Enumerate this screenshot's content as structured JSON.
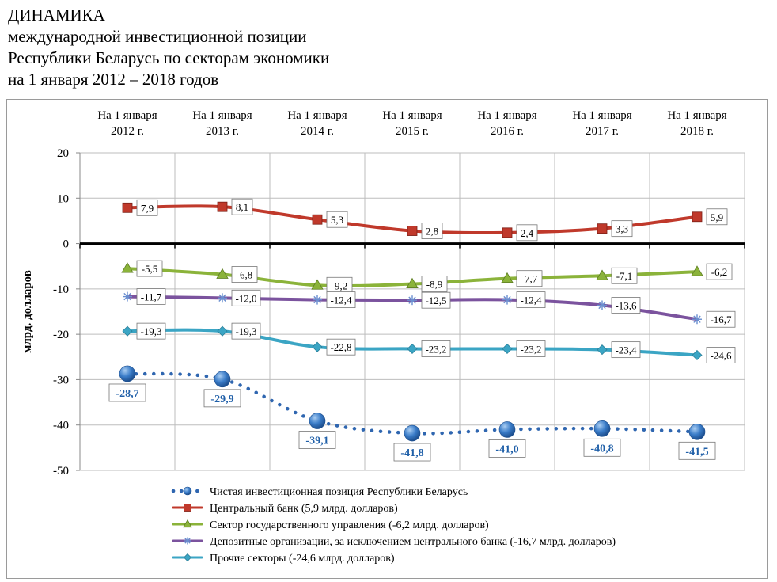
{
  "title": {
    "lines": [
      "ДИНАМИКА",
      "международной инвестиционной позиции",
      "Республики Беларусь по секторам экономики",
      "на 1 января 2012 – 2018 годов"
    ]
  },
  "chart_data": {
    "type": "line",
    "categories": [
      [
        "На 1 января",
        "2012 г."
      ],
      [
        "На 1 января",
        "2013 г."
      ],
      [
        "На 1 января",
        "2014 г."
      ],
      [
        "На 1 января",
        "2015 г."
      ],
      [
        "На 1 января",
        "2016 г."
      ],
      [
        "На 1 января",
        "2017 г."
      ],
      [
        "На 1 января",
        "2018 г."
      ]
    ],
    "ylabel": "млрд. долларов",
    "ylim": [
      -50,
      20
    ],
    "yticks": [
      20,
      10,
      0,
      -10,
      -20,
      -30,
      -40,
      -50
    ],
    "grid": true,
    "legend_position": "bottom",
    "series": [
      {
        "key": "net",
        "name": "Чистая инвестиционная позиция Республики Беларусь",
        "values": [
          -28.7,
          -29.9,
          -39.1,
          -41.8,
          -41.0,
          -40.8,
          -41.5
        ],
        "labels": [
          "-28,7",
          "-29,9",
          "-39,1",
          "-41,8",
          "-41,0",
          "-40,8",
          "-41,5"
        ],
        "color": "#2e6db4",
        "marker": "sphere",
        "line": "dotted"
      },
      {
        "key": "cb",
        "name": "Центральный банк (5,9 млрд. долларов)",
        "values": [
          7.9,
          8.1,
          5.3,
          2.8,
          2.4,
          3.3,
          5.9
        ],
        "labels": [
          "7,9",
          "8,1",
          "5,3",
          "2,8",
          "2,4",
          "3,3",
          "5,9"
        ],
        "color": "#c0392b",
        "marker": "square",
        "line": "solid"
      },
      {
        "key": "gov",
        "name": "Сектор государственного управления (-6,2 млрд. долларов)",
        "values": [
          -5.5,
          -6.8,
          -9.2,
          -8.9,
          -7.7,
          -7.1,
          -6.2
        ],
        "labels": [
          "-5,5",
          "-6,8",
          "-9,2",
          "-8,9",
          "-7,7",
          "-7,1",
          "-6,2"
        ],
        "color": "#8bb33a",
        "marker": "triangle",
        "line": "solid"
      },
      {
        "key": "dep",
        "name": "Депозитные организации, за исключением центрального банка (-16,7 млрд. долларов)",
        "values": [
          -11.7,
          -12.0,
          -12.4,
          -12.5,
          -12.4,
          -13.6,
          -16.7
        ],
        "labels": [
          "-11,7",
          "-12,0",
          "-12,4",
          "-12,5",
          "-12,4",
          "-13,6",
          "-16,7"
        ],
        "color": "#7b539e",
        "marker": "star",
        "line": "solid"
      },
      {
        "key": "other",
        "name": "Прочие секторы (-24,6 млрд. долларов)",
        "values": [
          -19.3,
          -19.3,
          -22.8,
          -23.2,
          -23.2,
          -23.4,
          -24.6
        ],
        "labels": [
          "-19,3",
          "-19,3",
          "-22,8",
          "-23,2",
          "-23,2",
          "-23,4",
          "-24,6"
        ],
        "color": "#3ba5c4",
        "marker": "diamond",
        "line": "solid"
      }
    ]
  }
}
